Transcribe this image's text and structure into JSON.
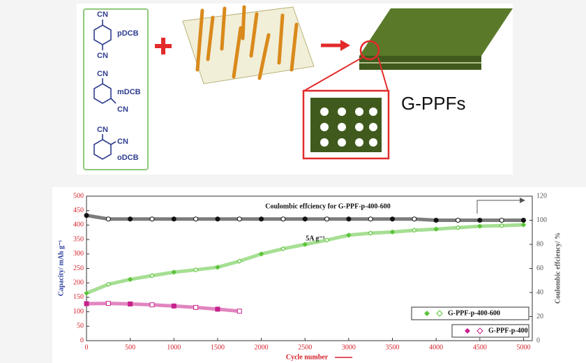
{
  "diagram": {
    "molecules": [
      {
        "label": "pDCB",
        "groups": [
          "CN",
          "CN"
        ]
      },
      {
        "label": "mDCB",
        "groups": [
          "CN",
          "CN"
        ]
      },
      {
        "label": "oDCB",
        "groups": [
          "CN",
          "CN"
        ]
      }
    ],
    "product": "G-PPFs"
  },
  "chart_data": {
    "type": "scatter",
    "annotations": [
      "Coulombic effciency for G-PPF-p-400-600",
      "5A g⁻¹"
    ],
    "xlabel": "Cycle number",
    "ylabel": "Capacity/ mAh g⁻¹",
    "y2label": "Coulombic effciency/ %",
    "xlim": [
      0,
      5100
    ],
    "xticks": [
      0,
      500,
      1000,
      1500,
      2000,
      2500,
      3000,
      3500,
      4000,
      4500,
      5000
    ],
    "ylim": [
      0,
      500
    ],
    "yticks": [
      0,
      50,
      100,
      150,
      200,
      250,
      300,
      350,
      400,
      450,
      500
    ],
    "y2lim": [
      0,
      120
    ],
    "y2ticks": [
      0,
      20,
      40,
      60,
      80,
      100,
      120
    ],
    "legend": "lower right",
    "series": [
      {
        "name": "G-PPF-p-400-600",
        "color": "#5cc43a",
        "x": [
          0,
          250,
          500,
          750,
          1000,
          1250,
          1500,
          1750,
          2000,
          2250,
          2500,
          2750,
          3000,
          3250,
          3500,
          3750,
          4000,
          4250,
          4500,
          4750,
          5000
        ],
        "values": [
          164,
          195,
          212,
          225,
          237,
          245,
          254,
          275,
          300,
          318,
          333,
          348,
          365,
          372,
          376,
          382,
          386,
          391,
          396,
          398,
          401
        ]
      },
      {
        "name": "G-PPF-p-400",
        "color": "#c8208c",
        "x": [
          0,
          250,
          500,
          750,
          1000,
          1250,
          1500,
          1750
        ],
        "values": [
          128,
          129,
          127,
          124,
          120,
          115,
          109,
          102
        ]
      },
      {
        "color": "#111111",
        "axis": "y2",
        "x": [
          0,
          250,
          500,
          750,
          1000,
          1250,
          1500,
          1750,
          2000,
          2250,
          2500,
          2750,
          3000,
          3250,
          3500,
          3750,
          4000,
          4250,
          4500,
          4750,
          5000
        ],
        "values": [
          104,
          101,
          101,
          101,
          101,
          101,
          101,
          101,
          101,
          101,
          101,
          101,
          101,
          101,
          101,
          101,
          100,
          100,
          100,
          100,
          100
        ]
      }
    ]
  }
}
